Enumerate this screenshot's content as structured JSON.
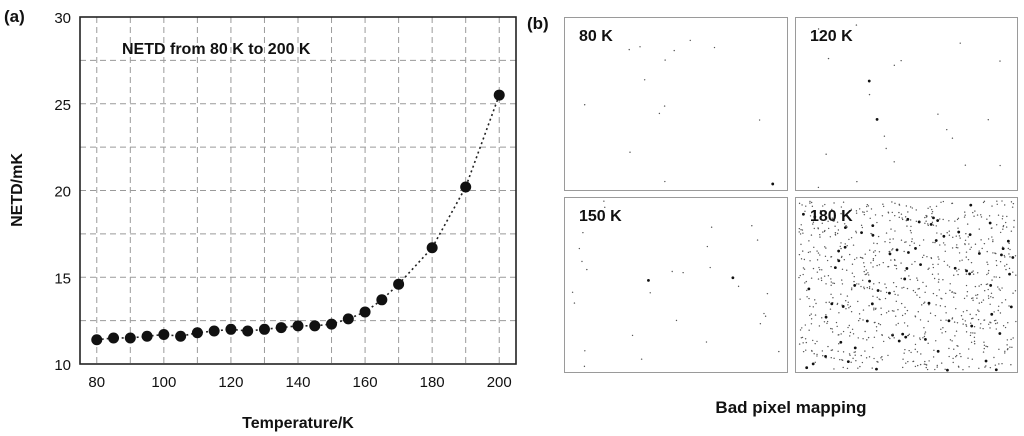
{
  "panel_a": {
    "tag": "(a)",
    "chart_data": {
      "type": "scatter",
      "title": "NETD from 80 K to 200 K",
      "xlabel": "Temperature/K",
      "ylabel": "NETD/mK",
      "xlim": [
        75,
        205
      ],
      "ylim": [
        10,
        30
      ],
      "xticks": [
        80,
        100,
        120,
        140,
        160,
        180,
        200
      ],
      "yticks": [
        10,
        15,
        20,
        25,
        30
      ],
      "grid": true,
      "line_style": "dotted",
      "series": [
        {
          "x": [
            80,
            85,
            90,
            95,
            100,
            105,
            110,
            115,
            120,
            125,
            130,
            135,
            140,
            145,
            150,
            155,
            160,
            165,
            170,
            180,
            190,
            200
          ],
          "y": [
            11.4,
            11.5,
            11.5,
            11.6,
            11.7,
            11.6,
            11.8,
            11.9,
            12.0,
            11.9,
            12.0,
            12.1,
            12.2,
            12.2,
            12.3,
            12.6,
            13.0,
            13.7,
            14.6,
            16.7,
            20.2,
            25.5
          ]
        }
      ]
    }
  },
  "panel_b": {
    "tag": "(b)",
    "caption": "Bad pixel mapping",
    "maps": [
      {
        "label": "80 K",
        "defect_count": 14
      },
      {
        "label": "120 K",
        "defect_count": 22
      },
      {
        "label": "150 K",
        "defect_count": 30
      },
      {
        "label": "180 K",
        "defect_count": 900
      }
    ]
  }
}
